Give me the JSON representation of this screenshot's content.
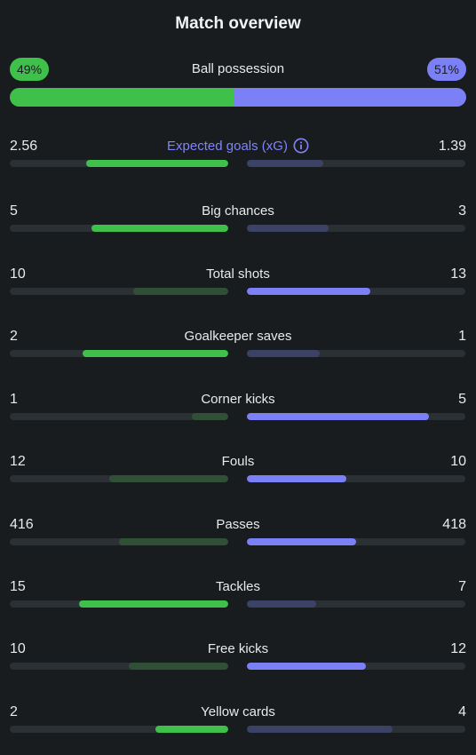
{
  "title": "Match overview",
  "colors": {
    "home_strong": "#3ec04a",
    "home_weak": "#2f4f36",
    "away_strong": "#7b80f7",
    "away_weak": "#3b4266",
    "track": "#2b3034"
  },
  "possession": {
    "label": "Ball possession",
    "home": "49%",
    "away": "51%",
    "home_fraction": 0.49
  },
  "stats": [
    {
      "label": "Expected goals (xG)",
      "home": "2.56",
      "away": "1.39",
      "home_fill": 0.65,
      "away_fill": 0.35,
      "winner": "home",
      "info_icon": "info-icon",
      "accent": true
    },
    {
      "label": "Big chances",
      "home": "5",
      "away": "3",
      "home_fill": 0.625,
      "away_fill": 0.375,
      "winner": "home"
    },
    {
      "label": "Total shots",
      "home": "10",
      "away": "13",
      "home_fill": 0.435,
      "away_fill": 0.565,
      "winner": "away"
    },
    {
      "label": "Goalkeeper saves",
      "home": "2",
      "away": "1",
      "home_fill": 0.667,
      "away_fill": 0.333,
      "winner": "home"
    },
    {
      "label": "Corner kicks",
      "home": "1",
      "away": "5",
      "home_fill": 0.167,
      "away_fill": 0.833,
      "winner": "away"
    },
    {
      "label": "Fouls",
      "home": "12",
      "away": "10",
      "home_fill": 0.545,
      "away_fill": 0.455,
      "winner": "away"
    },
    {
      "label": "Passes",
      "home": "416",
      "away": "418",
      "home_fill": 0.499,
      "away_fill": 0.501,
      "winner": "away"
    },
    {
      "label": "Tackles",
      "home": "15",
      "away": "7",
      "home_fill": 0.682,
      "away_fill": 0.318,
      "winner": "home"
    },
    {
      "label": "Free kicks",
      "home": "10",
      "away": "12",
      "home_fill": 0.455,
      "away_fill": 0.545,
      "winner": "away"
    },
    {
      "label": "Yellow cards",
      "home": "2",
      "away": "4",
      "home_fill": 0.333,
      "away_fill": 0.667,
      "winner": "home"
    }
  ]
}
